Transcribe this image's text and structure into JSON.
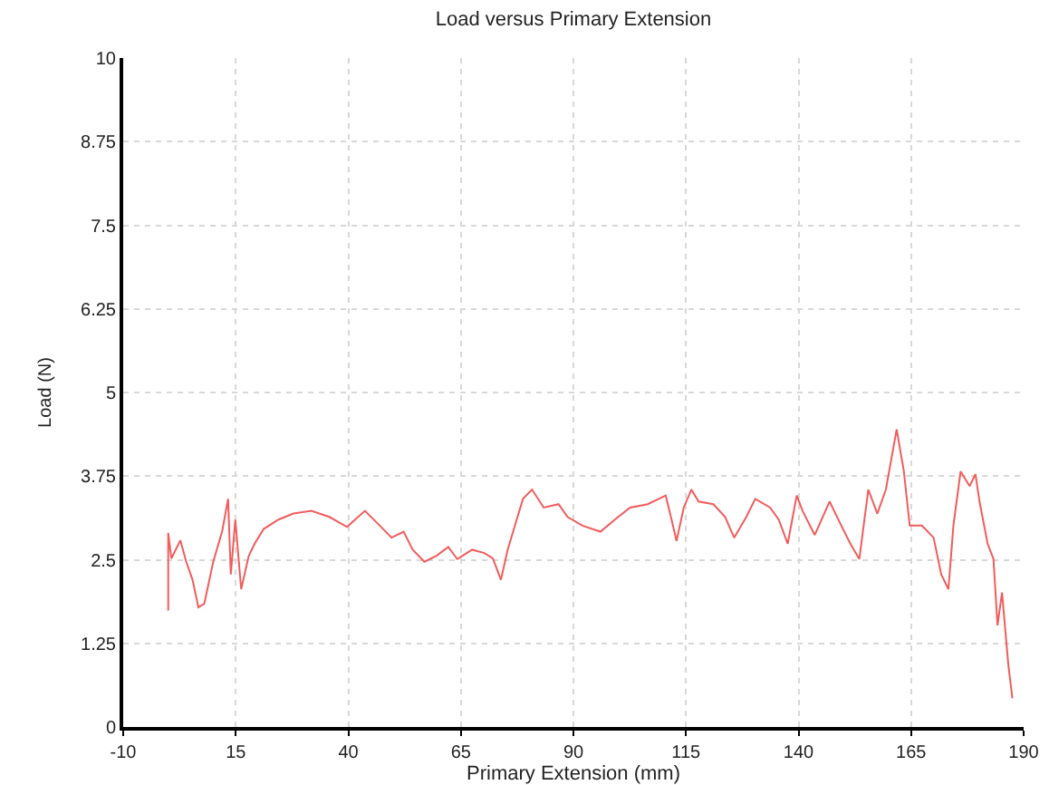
{
  "chart_data": {
    "type": "line",
    "title": "Load versus Primary Extension",
    "xlabel": "Primary Extension (mm)",
    "ylabel": "Load (N)",
    "x": [
      0.0,
      0.0,
      0.7,
      2.7,
      4.0,
      5.4,
      6.7,
      8.0,
      10.0,
      12.0,
      13.3,
      13.9,
      14.9,
      16.2,
      17.9,
      19.2,
      21.2,
      24.5,
      27.8,
      31.8,
      35.8,
      39.7,
      43.7,
      47.0,
      49.6,
      52.3,
      54.3,
      56.9,
      59.6,
      62.2,
      64.2,
      67.5,
      70.2,
      72.1,
      73.9,
      75.4,
      77.4,
      78.8,
      80.8,
      83.4,
      86.7,
      88.7,
      92.0,
      96.0,
      99.2,
      102.6,
      106.5,
      110.5,
      111.8,
      112.9,
      114.5,
      116.2,
      117.8,
      121.1,
      123.7,
      125.7,
      128.4,
      130.4,
      133.7,
      135.6,
      137.6,
      139.6,
      140.9,
      143.6,
      146.9,
      149.5,
      151.5,
      153.5,
      155.5,
      157.5,
      159.4,
      161.8,
      163.4,
      164.7,
      167.4,
      170.0,
      171.7,
      173.3,
      174.4,
      176.0,
      178.0,
      179.3,
      180.2,
      182.0,
      183.3,
      184.2,
      185.2,
      186.6,
      187.5
    ],
    "series": [
      {
        "color": "#f25c5c",
        "values": [
          1.74,
          2.9,
          2.52,
          2.79,
          2.47,
          2.2,
          1.79,
          1.84,
          2.47,
          2.93,
          3.41,
          2.28,
          3.1,
          2.06,
          2.56,
          2.74,
          2.96,
          3.1,
          3.19,
          3.23,
          3.14,
          2.99,
          3.23,
          3.01,
          2.83,
          2.92,
          2.65,
          2.47,
          2.56,
          2.69,
          2.51,
          2.65,
          2.6,
          2.52,
          2.2,
          2.65,
          3.1,
          3.41,
          3.55,
          3.28,
          3.33,
          3.14,
          3.01,
          2.92,
          3.1,
          3.28,
          3.33,
          3.46,
          3.1,
          2.78,
          3.28,
          3.55,
          3.37,
          3.33,
          3.14,
          2.83,
          3.14,
          3.41,
          3.28,
          3.1,
          2.74,
          3.46,
          3.23,
          2.87,
          3.37,
          3.01,
          2.74,
          2.51,
          3.55,
          3.19,
          3.55,
          4.45,
          3.82,
          3.01,
          3.01,
          2.83,
          2.28,
          2.06,
          3.01,
          3.82,
          3.6,
          3.78,
          3.37,
          2.74,
          2.51,
          1.52,
          2.01,
          0.93,
          0.43
        ]
      }
    ],
    "xlim": [
      -10,
      190
    ],
    "xticks": [
      -10,
      15,
      40,
      65,
      90,
      115,
      140,
      165,
      190
    ],
    "ylim": [
      0,
      10
    ],
    "yticks": [
      0,
      1.25,
      2.5,
      3.75,
      5,
      6.25,
      7.5,
      8.75,
      10
    ],
    "grid": true,
    "marker": "none",
    "line_style": "solid"
  }
}
